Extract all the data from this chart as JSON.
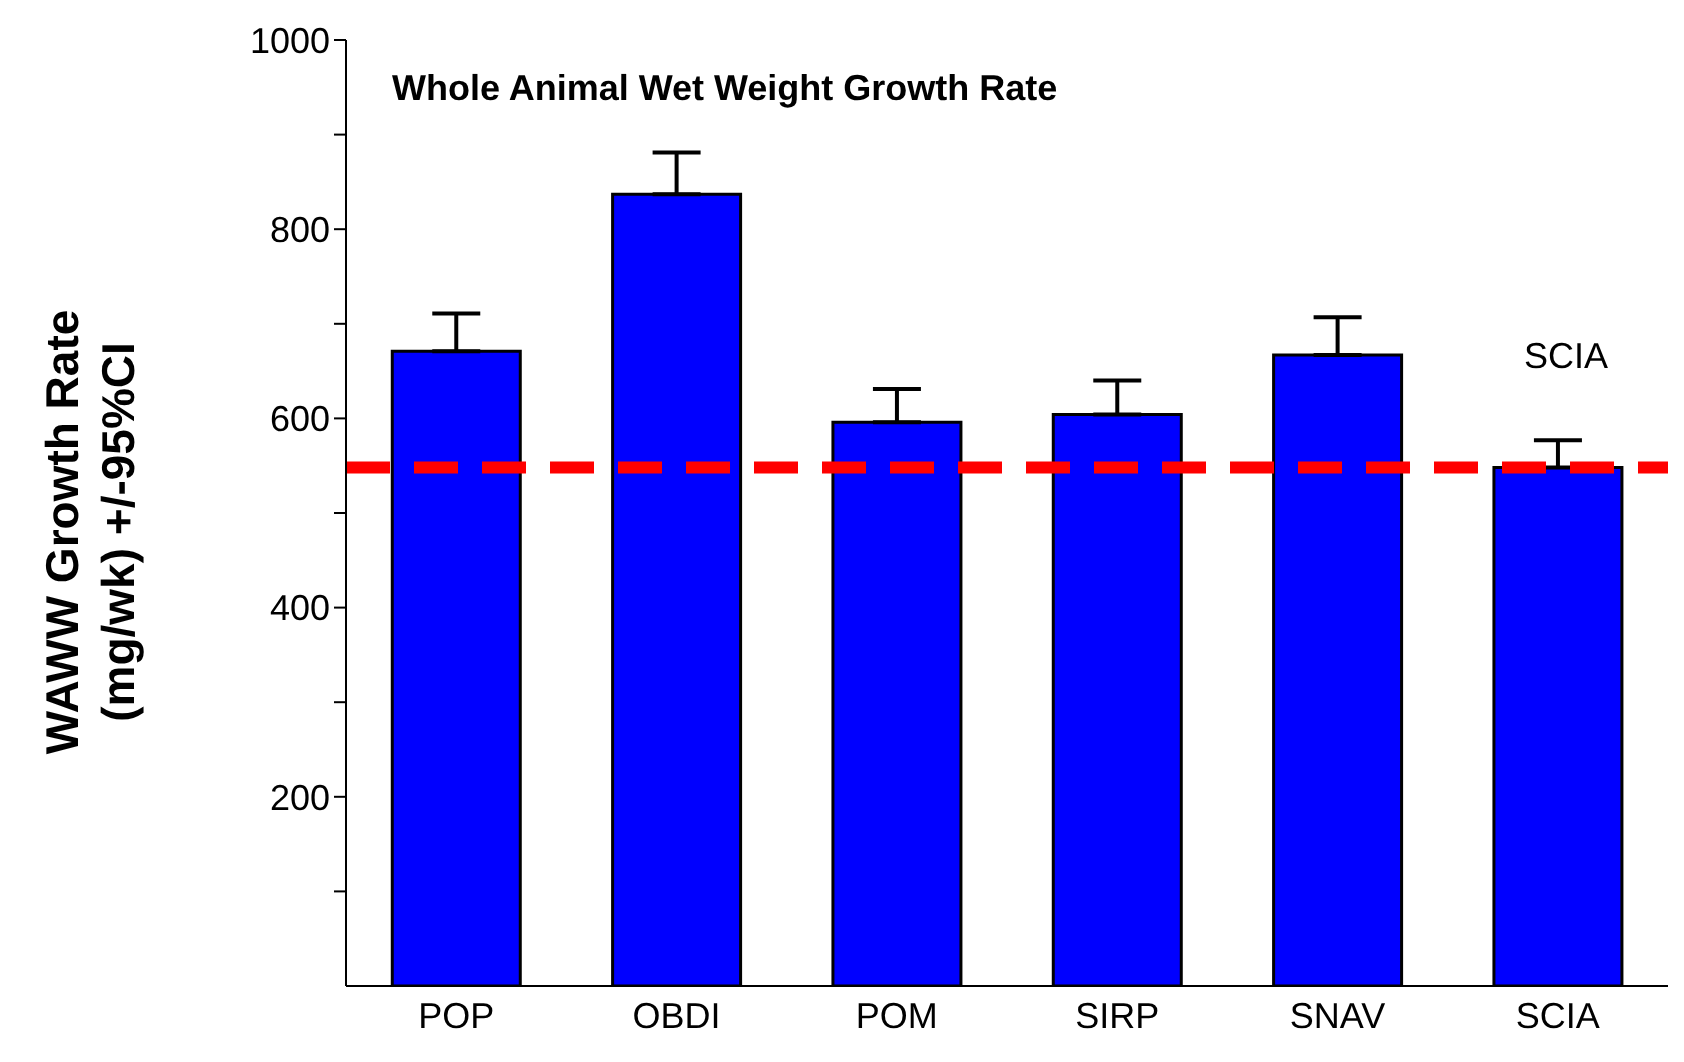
{
  "chart_data": {
    "type": "bar",
    "title": "Whole Animal Wet Weight Growth Rate",
    "ylabel": "WAWW Growth Rate\n(mg/wk) +/-95%CI",
    "categories": [
      "POP",
      "OBDI",
      "POM",
      "SIRP",
      "SNAV",
      "SCIA"
    ],
    "values": [
      671,
      837,
      596,
      604,
      667,
      548
    ],
    "errors": [
      [
        671,
        711
      ],
      [
        837,
        881
      ],
      [
        596,
        631
      ],
      [
        604,
        640
      ],
      [
        667,
        707
      ],
      [
        548,
        577
      ]
    ],
    "color": "#0000ff",
    "ylim": [
      0,
      1000
    ],
    "yticks": [
      {
        "value": 100,
        "label": null
      },
      200,
      {
        "value": 300,
        "label": null
      },
      400,
      {
        "value": 500,
        "label": null
      },
      600,
      {
        "value": 700,
        "label": null
      },
      800,
      {
        "value": 900,
        "label": null
      },
      1000
    ],
    "ref_lines": [
      {
        "axis": "y",
        "value": 548,
        "label": "SCIA",
        "color": "#ff0000",
        "line_style": "dashed"
      }
    ],
    "grid": false
  }
}
